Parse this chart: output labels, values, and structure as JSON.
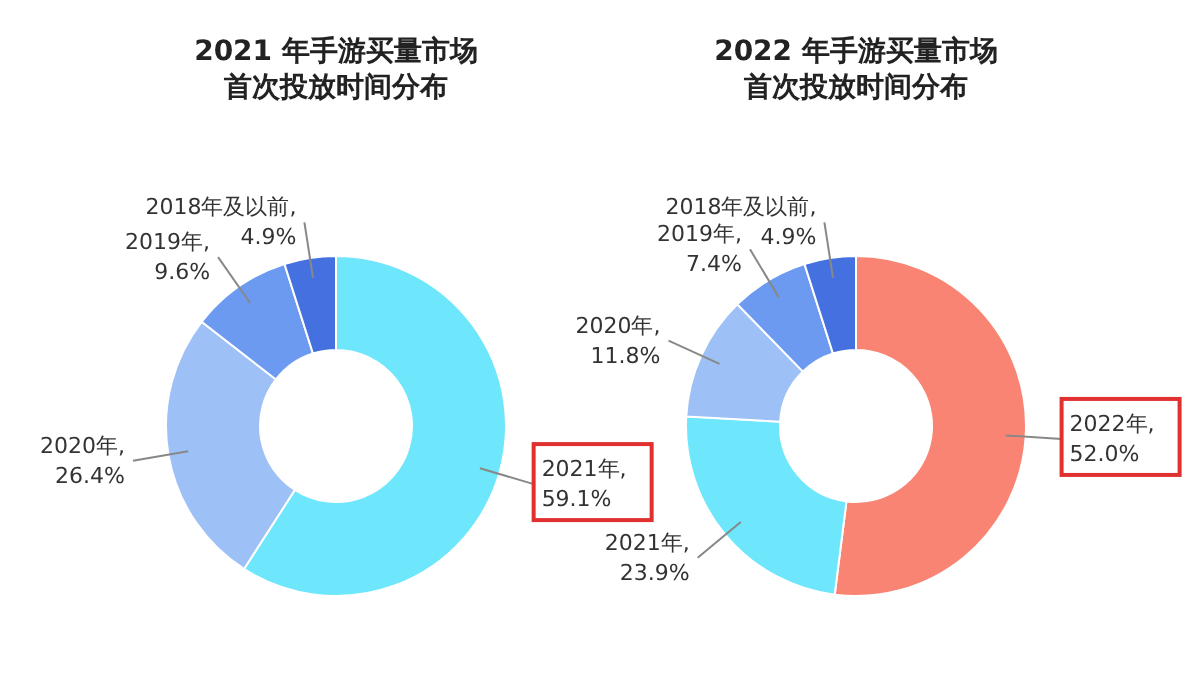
{
  "chart_data": [
    {
      "type": "donut",
      "title": "2021 年手游买量市场",
      "subtitle": "首次投放时间分布",
      "categories": [
        null,
        null,
        null,
        null
      ],
      "values": [
        59.1,
        26.4,
        9.6,
        4.9
      ],
      "value_labels": [
        "2021年, 59.1%",
        "2020年, 26.4%",
        "2019年, 9.6%",
        "2018年及以前, 4.9%"
      ],
      "colors": [
        "#6ee6fb",
        "#9dc0f7",
        "#6b9af0",
        "#4470e0"
      ]
    },
    {
      "type": "donut",
      "title": "2022 年手游买量市场",
      "subtitle": "首次投放时间分布",
      "categories": [
        null,
        null,
        null,
        null,
        null
      ],
      "values": [
        52.0,
        23.9,
        11.8,
        7.4,
        4.9
      ],
      "value_labels": [
        "2022年, 52.0%",
        "2021年, 23.9%",
        "2020年, 11.8%",
        "2019年, 7.4%",
        "2018年及以前, 4.9%"
      ],
      "colors": [
        "#fa8474",
        "#6ee6fb",
        "#9dc0f7",
        "#6b9af0",
        "#4470e0"
      ]
    }
  ]
}
